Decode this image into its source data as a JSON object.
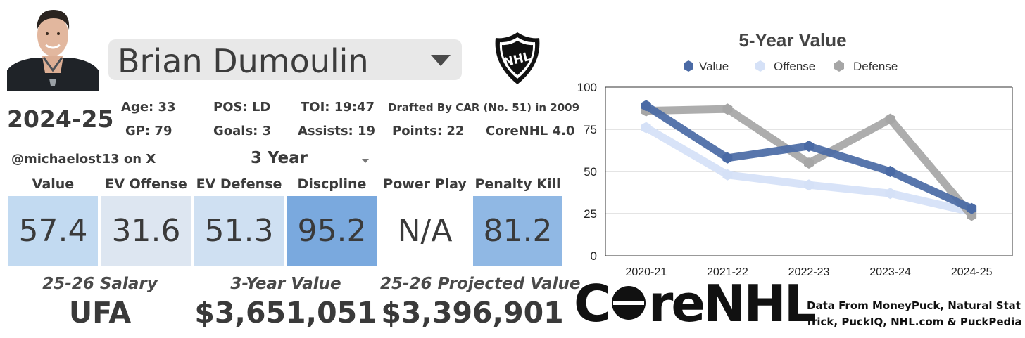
{
  "player": {
    "name": "Brian Dumoulin",
    "season": "2024-25",
    "age": "Age: 33",
    "gp": "GP: 79",
    "pos": "POS: LD",
    "goals": "Goals: 3",
    "toi": "TOI: 19:47",
    "assists": "Assists: 19",
    "drafted": "Drafted By CAR (No. 51) in 2009",
    "points": "Points: 22",
    "version": "CoreNHL 4.0"
  },
  "credit": "@michaelost13 on X",
  "period_select": "3 Year",
  "ratings": [
    {
      "label": "Value",
      "value": "57.4",
      "color": "#c2daf1"
    },
    {
      "label": "EV Offense",
      "value": "31.6",
      "color": "#dde6f1"
    },
    {
      "label": "EV Defense",
      "value": "51.3",
      "color": "#cfe0f2"
    },
    {
      "label": "Discpline",
      "value": "95.2",
      "color": "#7aa9de"
    },
    {
      "label": "Power Play",
      "value": "N/A",
      "color": "#ffffff"
    },
    {
      "label": "Penalty Kill",
      "value": "81.2",
      "color": "#90b8e4"
    }
  ],
  "contract": {
    "salary_label": "25-26 Salary",
    "salary_value": "UFA",
    "three_year_label": "3-Year Value",
    "three_year_value": "$3,651,051",
    "projected_label": "25-26 Projected Value",
    "projected_value": "$3,396,901"
  },
  "nhl_logo_text": "NHL",
  "brand": {
    "core": "C",
    "core_rest": "reNHL"
  },
  "sources": {
    "line1": "Data From MoneyPuck, Natural Stat",
    "line2": "Trick, PuckIQ, NHL.com & PuckPedia"
  },
  "colors": {
    "value": "#4a6aa5",
    "offense": "#d5e1f7",
    "defense": "#a6a6a6"
  },
  "chart_data": {
    "type": "line",
    "title": "5-Year Value",
    "categories": [
      "2020-21",
      "2021-22",
      "2022-23",
      "2023-24",
      "2024-25"
    ],
    "ylim": [
      0,
      100
    ],
    "yticks": [
      0,
      25,
      50,
      75,
      100
    ],
    "legend_position": "top",
    "series": [
      {
        "name": "Value",
        "values": [
          89,
          58,
          65,
          50,
          28
        ]
      },
      {
        "name": "Offense",
        "values": [
          76,
          48,
          42,
          37,
          26
        ]
      },
      {
        "name": "Defense",
        "values": [
          86,
          87,
          55,
          81,
          24
        ]
      }
    ]
  }
}
